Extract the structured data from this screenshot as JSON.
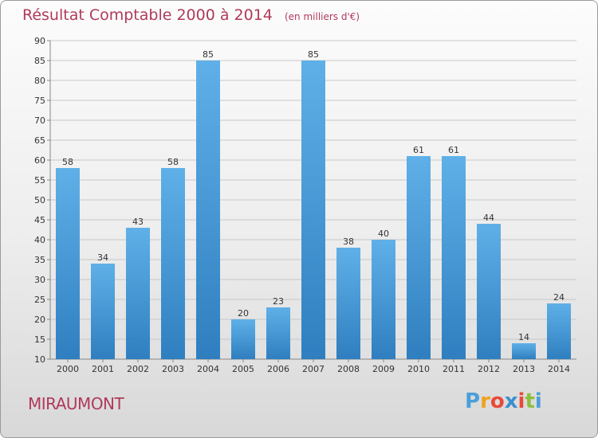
{
  "header": {
    "title": "Résultat Comptable 2000 à 2014",
    "subtitle": "(en milliers d'€)"
  },
  "footer": {
    "commune": "MIRAUMONT",
    "logo_letters": [
      "P",
      "r",
      "o",
      "x",
      "i",
      "t",
      "i"
    ]
  },
  "colors": {
    "title": "#b03a5b",
    "bar_top": "#5fb0e8",
    "bar_bottom": "#2f7fc0",
    "grid": "#c8c8c8"
  },
  "chart_data": {
    "type": "bar",
    "title": "Résultat Comptable 2000 à 2014",
    "subtitle": "(en milliers d'€)",
    "xlabel": "",
    "ylabel": "",
    "categories": [
      "2000",
      "2001",
      "2002",
      "2003",
      "2004",
      "2005",
      "2006",
      "2007",
      "2008",
      "2009",
      "2010",
      "2011",
      "2012",
      "2013",
      "2014"
    ],
    "values": [
      58,
      34,
      43,
      58,
      85,
      20,
      23,
      85,
      38,
      40,
      61,
      61,
      44,
      14,
      24
    ],
    "ylim": [
      10,
      90
    ],
    "yticks": [
      "10",
      "15",
      "20",
      "25",
      "30",
      "35",
      "40",
      "45",
      "50",
      "55",
      "60",
      "65",
      "70",
      "75",
      "80",
      "85",
      "90"
    ],
    "grid": true
  }
}
